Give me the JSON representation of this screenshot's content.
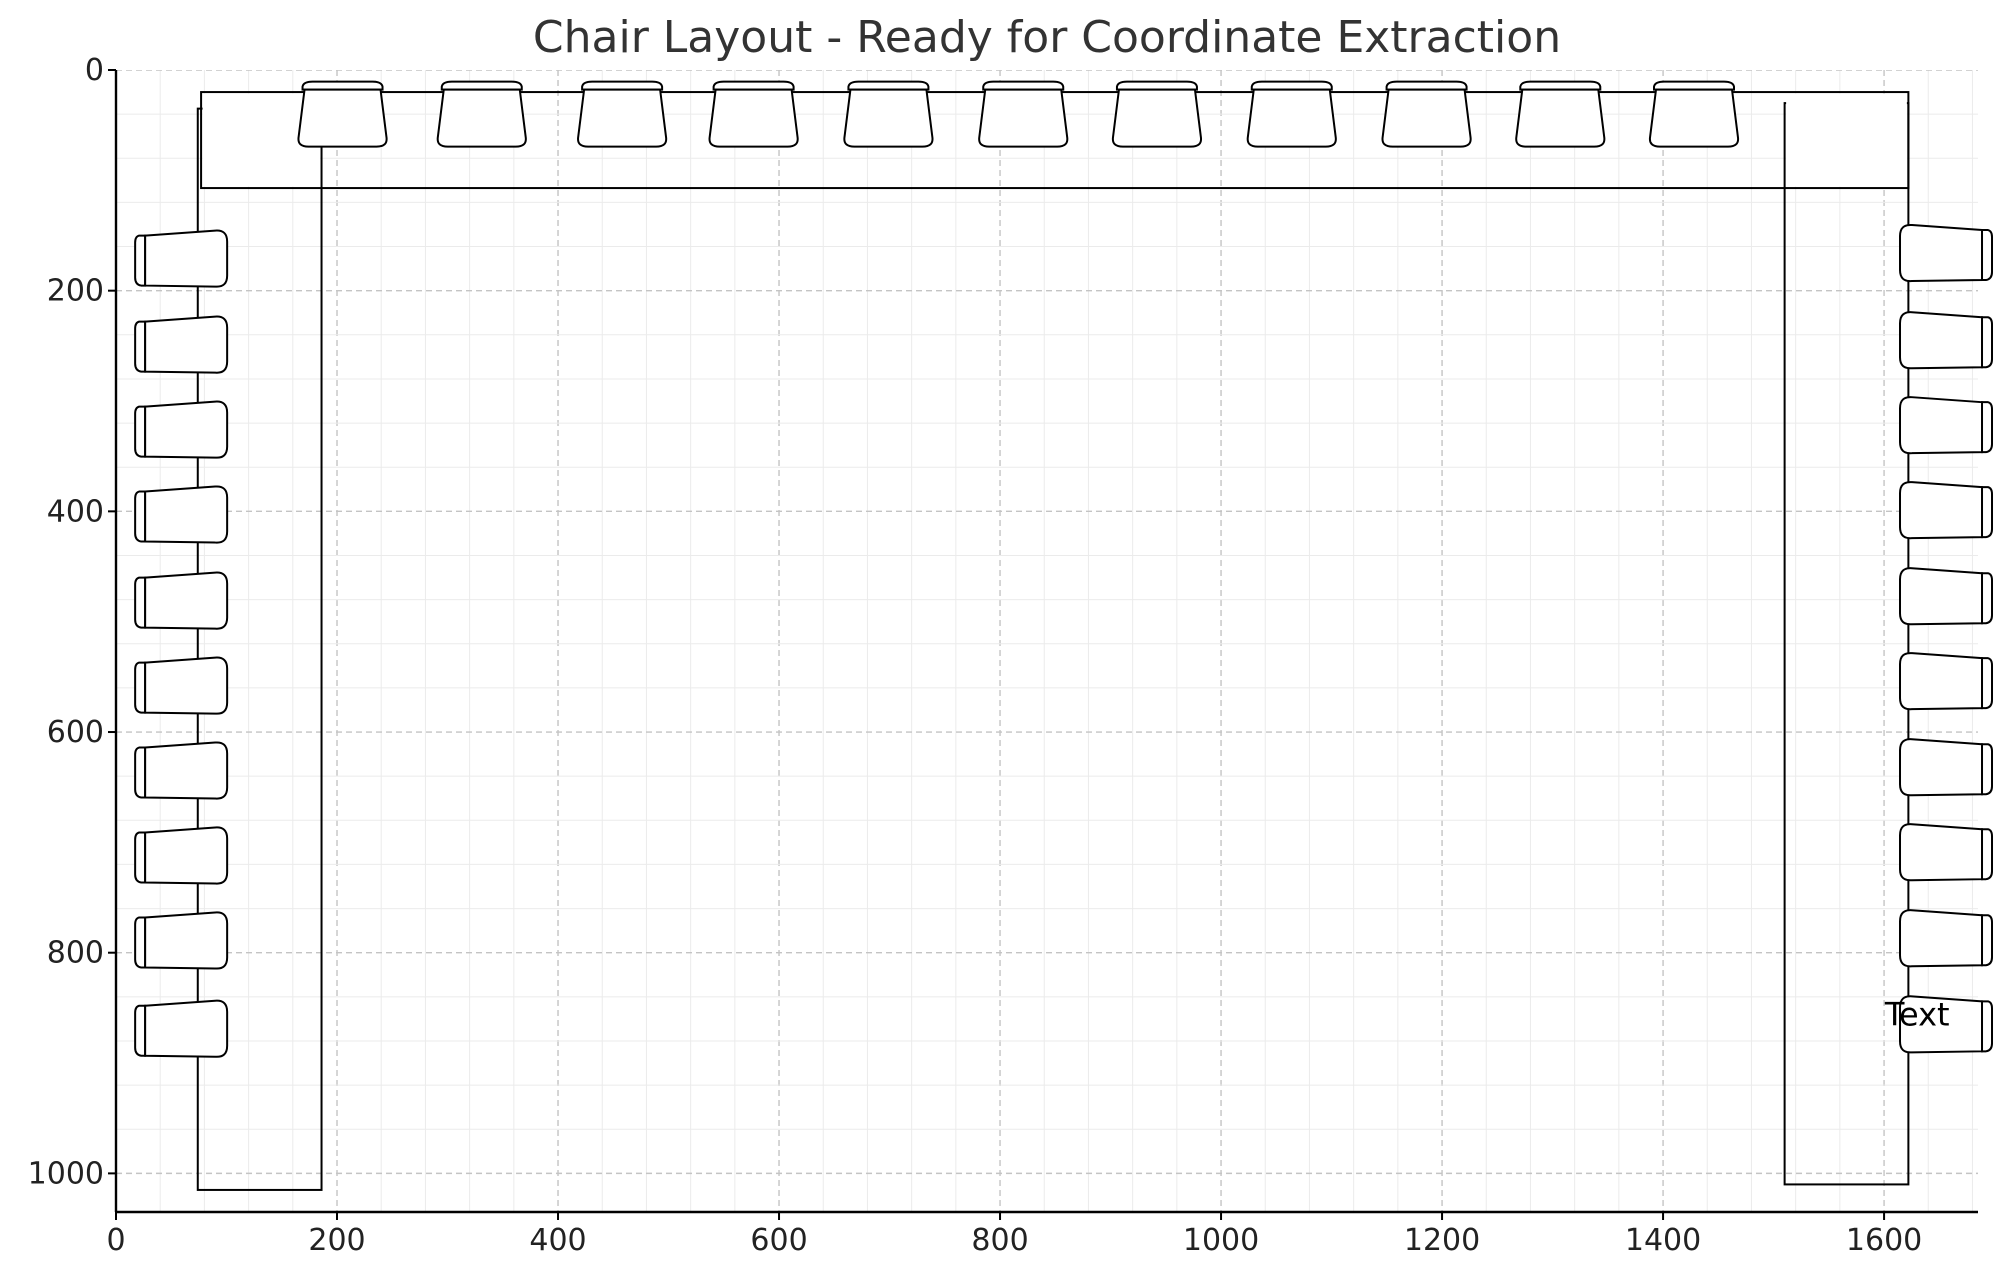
{
  "chart_data": {
    "type": "scatter",
    "title": "Chair Layout - Ready for Coordinate Extraction",
    "xlabel": "",
    "ylabel": "",
    "xlim": [
      0,
      1685
    ],
    "ylim": [
      0,
      1035
    ],
    "y_inverted": true,
    "grid": true,
    "minor_grid": true,
    "x_ticks": [
      "0",
      "200",
      "400",
      "600",
      "800",
      "1000",
      "1200",
      "1400",
      "1600"
    ],
    "y_ticks": [
      "0",
      "200",
      "400",
      "600",
      "800",
      "1000"
    ],
    "tables": [
      {
        "name": "top",
        "x": [
          77,
          1622
        ],
        "y": [
          20,
          107
        ]
      },
      {
        "name": "left",
        "x": [
          74,
          186
        ],
        "y": [
          35,
          1015
        ]
      },
      {
        "name": "right",
        "x": [
          1510,
          1622
        ],
        "y": [
          30,
          1010
        ]
      }
    ],
    "chair_groups": [
      {
        "side": "top",
        "orientation": "down",
        "x": [
          205,
          331,
          458,
          577,
          699,
          821,
          942,
          1064,
          1186,
          1307,
          1428
        ],
        "y": 45
      },
      {
        "side": "left",
        "orientation": "right",
        "x": 68,
        "y": [
          170,
          248,
          325,
          402,
          480,
          557,
          634,
          711,
          788,
          868
        ]
      },
      {
        "side": "right",
        "orientation": "left",
        "x": 1647,
        "y": [
          165,
          244,
          321,
          398,
          476,
          553,
          631,
          708,
          786,
          864
        ]
      }
    ],
    "annotations": [
      {
        "text": "Text",
        "x": 1630,
        "y": 856
      }
    ]
  }
}
